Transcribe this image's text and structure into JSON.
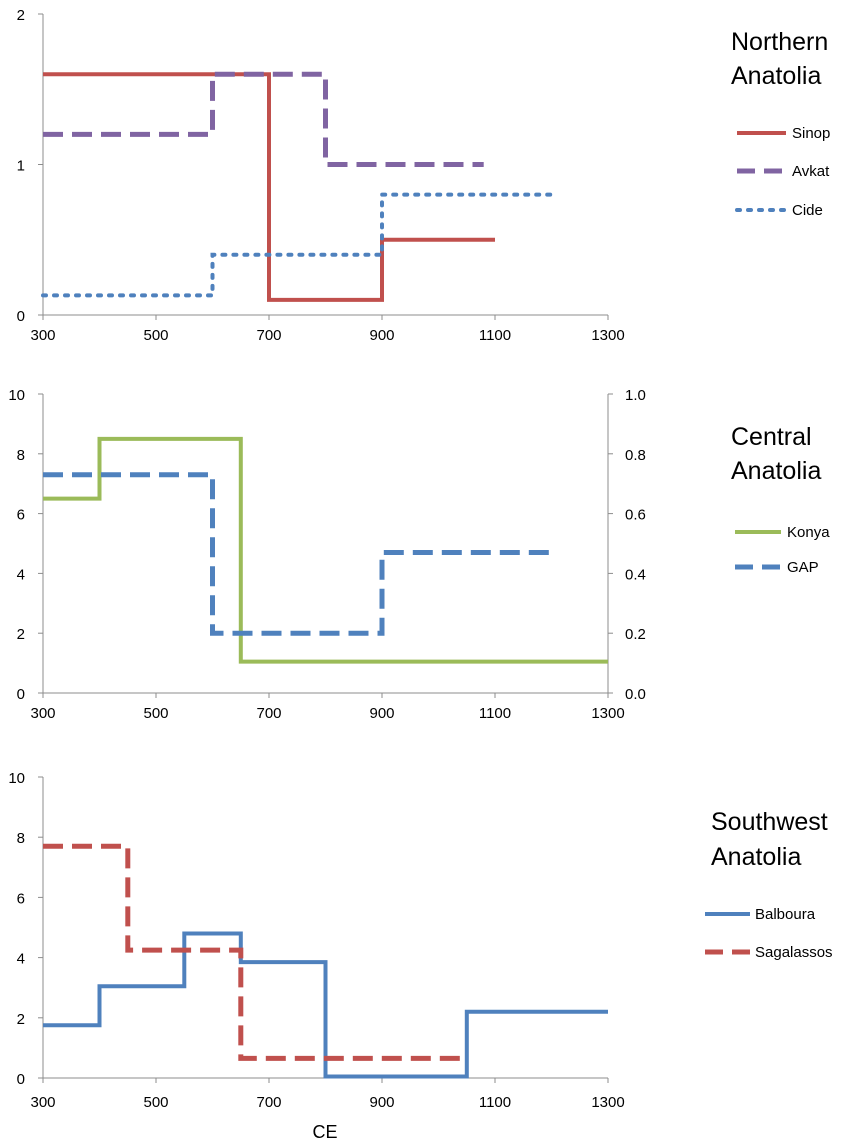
{
  "chart_data": [
    {
      "type": "line",
      "step": true,
      "title": "Northern Anatolia",
      "title_lines": [
        "Northern",
        "Anatolia"
      ],
      "xlim": [
        300,
        1300
      ],
      "x_ticks": [
        300,
        500,
        700,
        900,
        1100,
        1300
      ],
      "ylim": [
        0,
        2
      ],
      "y_ticks": [
        0,
        1,
        2
      ],
      "y_tick_labels": [
        "0",
        "1",
        "2"
      ],
      "grid": false,
      "legend_position": "right",
      "series": [
        {
          "name": "Sinop",
          "axis": "left",
          "color": "#c0504d",
          "dash": "solid",
          "x": [
            300,
            700,
            700,
            900,
            900,
            1100
          ],
          "y": [
            1.6,
            1.6,
            0.1,
            0.1,
            0.5,
            0.5
          ]
        },
        {
          "name": "Avkat",
          "axis": "left",
          "color": "#8064a2",
          "dash": "dashed",
          "x": [
            300,
            600,
            600,
            800,
            800,
            1080
          ],
          "y": [
            1.2,
            1.2,
            1.6,
            1.6,
            1.0,
            1.0
          ]
        },
        {
          "name": "Cide",
          "axis": "left",
          "color": "#4f81bd",
          "dash": "dotted",
          "x": [
            300,
            600,
            600,
            900,
            900,
            1200
          ],
          "y": [
            0.13,
            0.13,
            0.4,
            0.4,
            0.8,
            0.8
          ]
        }
      ]
    },
    {
      "type": "line",
      "step": true,
      "title": "Central Anatolia",
      "title_lines": [
        "Central",
        "Anatolia"
      ],
      "xlim": [
        300,
        1300
      ],
      "x_ticks": [
        300,
        500,
        700,
        900,
        1100,
        1300
      ],
      "ylim": [
        0,
        10
      ],
      "y_ticks": [
        0,
        2,
        4,
        6,
        8,
        10
      ],
      "y_tick_labels": [
        "0",
        "2",
        "4",
        "6",
        "8",
        "10"
      ],
      "y2lim": [
        0,
        1
      ],
      "y2_ticks": [
        0,
        0.2,
        0.4,
        0.6,
        0.8,
        1.0
      ],
      "y2_tick_labels": [
        "0.0",
        "0.2",
        "0.4",
        "0.6",
        "0.8",
        "1.0"
      ],
      "grid": false,
      "legend_position": "right",
      "series": [
        {
          "name": "Konya",
          "axis": "left",
          "color": "#9bbb59",
          "dash": "solid",
          "x": [
            300,
            400,
            400,
            650,
            650,
            1300
          ],
          "y": [
            6.5,
            6.5,
            8.5,
            8.5,
            1.05,
            1.05
          ]
        },
        {
          "name": "GAP",
          "axis": "right",
          "color": "#4f81bd",
          "dash": "dashed",
          "x": [
            300,
            600,
            600,
            900,
            900,
            1200
          ],
          "y": [
            0.73,
            0.73,
            0.2,
            0.2,
            0.47,
            0.47
          ]
        }
      ]
    },
    {
      "type": "line",
      "step": true,
      "title": "Southwest Anatolia",
      "title_lines": [
        "Southwest",
        "Anatolia"
      ],
      "xlim": [
        300,
        1300
      ],
      "x_ticks": [
        300,
        500,
        700,
        900,
        1100,
        1300
      ],
      "xlabel": "CE",
      "ylim": [
        0,
        10
      ],
      "y_ticks": [
        0,
        2,
        4,
        6,
        8,
        10
      ],
      "y_tick_labels": [
        "0",
        "2",
        "4",
        "6",
        "8",
        "10"
      ],
      "grid": false,
      "legend_position": "right",
      "series": [
        {
          "name": "Balboura",
          "axis": "left",
          "color": "#4f81bd",
          "dash": "solid",
          "x": [
            300,
            400,
            400,
            550,
            550,
            650,
            650,
            800,
            800,
            1050,
            1050,
            1300
          ],
          "y": [
            1.75,
            1.75,
            3.05,
            3.05,
            4.8,
            4.8,
            3.85,
            3.85,
            0.05,
            0.05,
            2.2,
            2.2
          ]
        },
        {
          "name": "Sagalassos",
          "axis": "left",
          "color": "#c0504d",
          "dash": "dashed",
          "x": [
            300,
            450,
            450,
            650,
            650,
            1050
          ],
          "y": [
            7.7,
            7.7,
            4.25,
            4.25,
            0.65,
            0.65
          ]
        }
      ]
    }
  ]
}
